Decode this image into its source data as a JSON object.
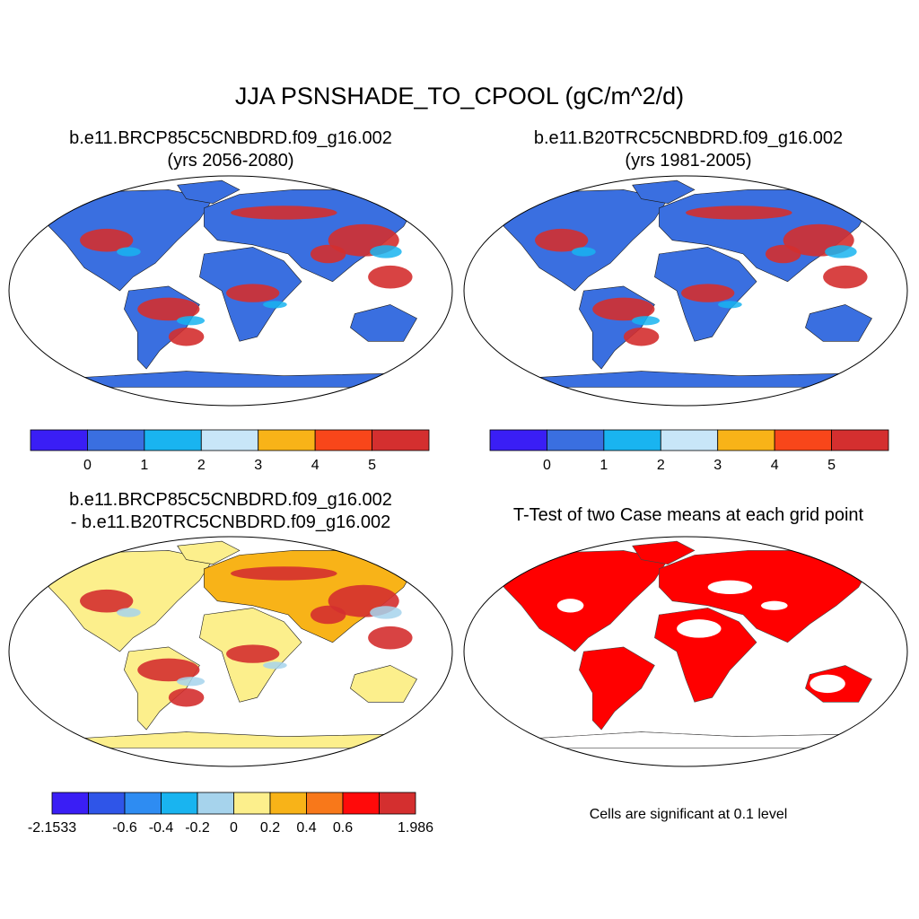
{
  "figure": {
    "title": "JJA PSNSHADE_TO_CPOOL (gC/m^2/d)"
  },
  "panels": [
    {
      "id": "future",
      "title_line1": "b.e11.BRCP85C5CNBDRD.f09_g16.002",
      "title_line2": "(yrs 2056-2080)",
      "colorbar": {
        "colors": [
          "#3a1ef5",
          "#3a6fe0",
          "#19b4f0",
          "#c8e6f8",
          "#f8b318",
          "#f8461a",
          "#d42f2f"
        ],
        "tick_labels": [
          "0",
          "1",
          "2",
          "3",
          "4",
          "5"
        ]
      }
    },
    {
      "id": "historical",
      "title_line1": "b.e11.B20TRC5CNBDRD.f09_g16.002",
      "title_line2": "(yrs 1981-2005)",
      "colorbar": {
        "colors": [
          "#3a1ef5",
          "#3a6fe0",
          "#19b4f0",
          "#c8e6f8",
          "#f8b318",
          "#f8461a",
          "#d42f2f"
        ],
        "tick_labels": [
          "0",
          "1",
          "2",
          "3",
          "4",
          "5"
        ]
      }
    },
    {
      "id": "difference",
      "title_line1": "b.e11.BRCP85C5CNBDRD.f09_g16.002",
      "title_line2": "- b.e11.B20TRC5CNBDRD.f09_g16.002",
      "colorbar": {
        "colors": [
          "#3a1ef5",
          "#2f55e8",
          "#2e8cf2",
          "#19b4f0",
          "#a6d3ec",
          "#fcef8c",
          "#f8b318",
          "#f8781a",
          "#ff0a0a",
          "#d42f2f"
        ],
        "tick_labels": [
          "-2.1533",
          "-0.6",
          "-0.4",
          "-0.2",
          "0",
          "0.2",
          "0.4",
          "0.6",
          "1.986"
        ]
      }
    },
    {
      "id": "ttest",
      "title_line1": "T-Test of two Case means at each grid point",
      "note": "Cells are significant at 0.1 level",
      "significant_color": "#ff0000"
    }
  ]
}
